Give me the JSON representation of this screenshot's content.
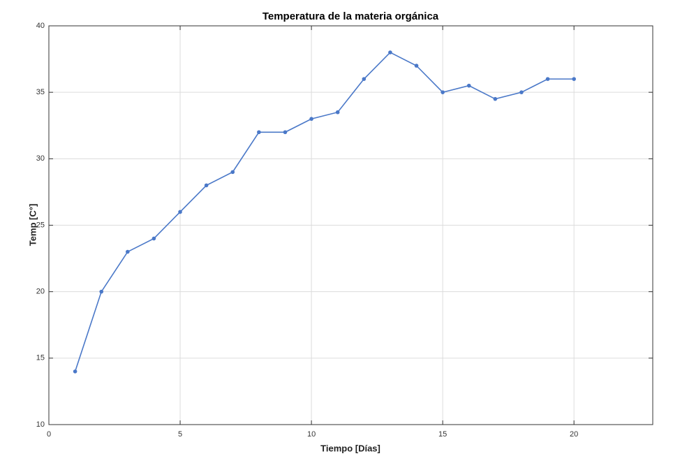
{
  "chart_data": {
    "type": "line",
    "title": "Temperatura de la materia orgánica",
    "xlabel": "Tiempo [Días]",
    "ylabel": "Temp [C°]",
    "x": [
      1,
      2,
      3,
      4,
      5,
      6,
      7,
      8,
      9,
      10,
      11,
      12,
      13,
      14,
      15,
      16,
      17,
      18,
      19,
      20
    ],
    "series": [
      {
        "color": "#4a78c8",
        "values": [
          14,
          20,
          23,
          24,
          26,
          28,
          29,
          32,
          32,
          33,
          33.5,
          36,
          38,
          37,
          35,
          35.5,
          34.5,
          35,
          36,
          36
        ]
      }
    ],
    "xlim": [
      0,
      23
    ],
    "xticks": [
      0,
      5,
      10,
      15,
      20
    ],
    "ylim": [
      10,
      40
    ],
    "yticks": [
      10,
      15,
      20,
      25,
      30,
      35,
      40
    ],
    "grid": true
  }
}
